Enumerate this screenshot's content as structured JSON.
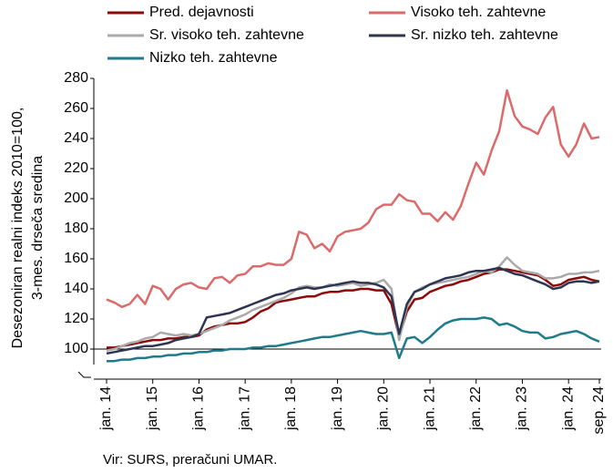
{
  "chart_data": {
    "type": "line",
    "y_label_lines": [
      "Desezoniran realni indeks 2010=100,",
      "3-mes. drseča sredina"
    ],
    "source": "Vir: SURS, preračuni UMAR.",
    "categories": [
      "jan. 14",
      null,
      null,
      null,
      null,
      null,
      "jan. 15",
      null,
      null,
      null,
      null,
      null,
      "jan. 16",
      null,
      null,
      null,
      null,
      null,
      "jan. 17",
      null,
      null,
      null,
      null,
      null,
      "jan. 18",
      null,
      null,
      null,
      null,
      null,
      "jan. 19",
      null,
      null,
      null,
      null,
      null,
      "jan. 20",
      null,
      null,
      null,
      null,
      null,
      "jan. 21",
      null,
      null,
      null,
      null,
      null,
      "jan. 22",
      null,
      null,
      null,
      null,
      null,
      "jan. 23",
      null,
      null,
      null,
      null,
      null,
      "jan. 24",
      null,
      null,
      null,
      "sep. 24"
    ],
    "series": [
      {
        "name": "Pred. dejavnosti",
        "color": "#8b0a0a",
        "values": [
          101,
          101,
          102,
          103,
          104,
          105,
          106,
          106,
          107,
          107,
          108,
          108,
          109,
          113,
          115,
          116,
          117,
          117,
          118,
          121,
          125,
          127,
          131,
          132,
          133,
          134,
          135,
          135,
          137,
          138,
          138,
          139,
          139,
          140,
          140,
          139,
          139,
          130,
          108,
          125,
          133,
          134,
          138,
          140,
          142,
          143,
          145,
          146,
          148,
          150,
          151,
          153,
          153,
          152,
          151,
          150,
          149,
          146,
          142,
          143,
          146,
          147,
          148,
          146,
          145
        ]
      },
      {
        "name": "Visoko teh. zahtevne",
        "color": "#db6b6b",
        "values": [
          133,
          131,
          128,
          130,
          136,
          130,
          142,
          140,
          133,
          140,
          143,
          144,
          141,
          140,
          147,
          148,
          144,
          149,
          150,
          155,
          155,
          157,
          156,
          156,
          160,
          178,
          176,
          167,
          170,
          165,
          175,
          178,
          179,
          180,
          184,
          193,
          196,
          196,
          203,
          199,
          198,
          190,
          190,
          185,
          191,
          186,
          195,
          210,
          224,
          216,
          232,
          245,
          272,
          255,
          248,
          246,
          243,
          254,
          261,
          236,
          228,
          236,
          250,
          240,
          241
        ]
      },
      {
        "name": "Sr. visoko teh. zahtevne",
        "color": "#aaaaaa",
        "values": [
          99,
          100,
          102,
          104,
          105,
          107,
          108,
          111,
          110,
          109,
          110,
          109,
          110,
          112,
          114,
          116,
          119,
          121,
          123,
          126,
          128,
          130,
          132,
          134,
          137,
          141,
          142,
          141,
          141,
          143,
          142,
          143,
          144,
          142,
          143,
          144,
          146,
          140,
          106,
          128,
          138,
          141,
          143,
          144,
          145,
          146,
          147,
          148,
          150,
          152,
          151,
          155,
          161,
          156,
          152,
          151,
          150,
          147,
          147,
          148,
          150,
          150,
          151,
          151,
          152
        ]
      },
      {
        "name": "Sr. nizko teh. zahtevne",
        "color": "#2e3550",
        "values": [
          97,
          98,
          99,
          100,
          101,
          102,
          102,
          103,
          104,
          106,
          107,
          108,
          110,
          121,
          122,
          123,
          124,
          126,
          128,
          130,
          132,
          134,
          136,
          137,
          139,
          140,
          141,
          140,
          141,
          142,
          143,
          144,
          145,
          144,
          144,
          143,
          141,
          135,
          110,
          130,
          138,
          140,
          143,
          145,
          147,
          148,
          149,
          151,
          152,
          152,
          153,
          154,
          152,
          150,
          149,
          147,
          145,
          143,
          140,
          141,
          144,
          145,
          145,
          144,
          145
        ]
      },
      {
        "name": "Nizko teh. zahtevne",
        "color": "#1f7a8c",
        "values": [
          92,
          92,
          93,
          93,
          94,
          94,
          95,
          95,
          96,
          96,
          97,
          97,
          98,
          98,
          99,
          99,
          100,
          100,
          100,
          101,
          101,
          102,
          102,
          103,
          104,
          105,
          106,
          107,
          108,
          108,
          109,
          110,
          111,
          112,
          111,
          110,
          110,
          111,
          94,
          107,
          108,
          104,
          108,
          113,
          117,
          119,
          120,
          120,
          120,
          121,
          120,
          116,
          117,
          115,
          112,
          111,
          111,
          107,
          108,
          110,
          111,
          112,
          110,
          107,
          105
        ]
      }
    ],
    "ylim": [
      80,
      280
    ],
    "yticks": [
      100,
      120,
      140,
      160,
      180,
      200,
      220,
      240,
      260,
      280
    ],
    "hline": 100
  }
}
